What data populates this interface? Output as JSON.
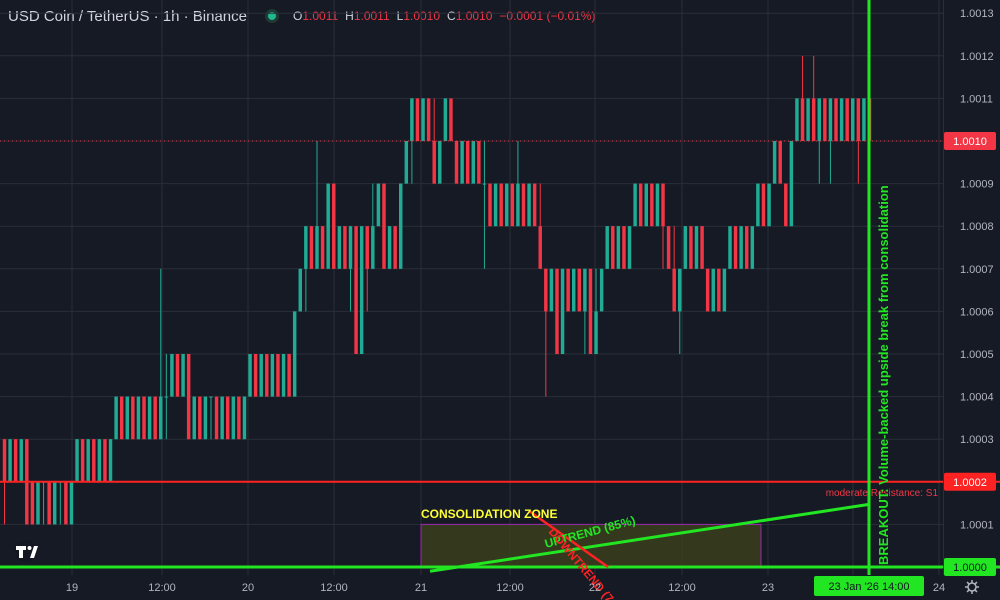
{
  "header": {
    "symbol_title": "USD Coin / TetherUS · 1h · Binance",
    "ohlc": {
      "open_label": "O",
      "open": "1.0011",
      "high_label": "H",
      "high": "1.0011",
      "low_label": "L",
      "low": "1.0010",
      "close_label": "C",
      "close": "1.0010",
      "change": "−0.0001 (−0.01%)"
    }
  },
  "colors": {
    "background": "#161a25",
    "up": "#22ab94",
    "down": "#f23645",
    "breakout": "#22e622",
    "resistance": "#ff2222",
    "zone_fill": "#3a3f1d",
    "zone_border": "#9c27b0",
    "grid": "#2a2e39"
  },
  "logo": {
    "icon": "tradingview-logo-icon",
    "text": "TV"
  },
  "chart_data": {
    "type": "candlestick",
    "y_axis_ticks": [
      "1.0013",
      "1.0012",
      "1.0011",
      "1.0010",
      "1.0009",
      "1.0008",
      "1.0007",
      "1.0006",
      "1.0005",
      "1.0004",
      "1.0003",
      "1.0002",
      "1.0001",
      "1.0000"
    ],
    "ylim": [
      0.99995,
      1.00134
    ],
    "x_axis_ticks": [
      "19",
      "12:00",
      "20",
      "12:00",
      "21",
      "12:00",
      "22",
      "12:00",
      "23",
      "12:00",
      "24"
    ],
    "last_price": "1.0010",
    "price_labels": {
      "resistance": "1.0002",
      "breakout": "1.0000"
    },
    "crosshair_time_label": "23 Jan '26   14:00",
    "annotations": {
      "consolidation_zone": "CONSOLIDATION ZONE",
      "uptrend": "UPTREND (85%)",
      "downtrend": "DOWNTREND (7",
      "resistance": "moderate Resistance: S1",
      "breakout": "BREAKOUT: Volume-backed upside break from consolidation"
    },
    "candles": [
      {
        "o": 1.0003,
        "h": 1.0003,
        "l": 1.0001,
        "c": 1.0002
      },
      {
        "o": 1.0002,
        "h": 1.0003,
        "l": 1.0002,
        "c": 1.0003
      },
      {
        "o": 1.0003,
        "h": 1.0003,
        "l": 1.0002,
        "c": 1.0002
      },
      {
        "o": 1.0002,
        "h": 1.0003,
        "l": 1.0002,
        "c": 1.0003
      },
      {
        "o": 1.0003,
        "h": 1.0003,
        "l": 1.0001,
        "c": 1.0001
      },
      {
        "o": 1.0002,
        "h": 1.0002,
        "l": 1.0001,
        "c": 1.0001
      },
      {
        "o": 1.0001,
        "h": 1.0002,
        "l": 1.0001,
        "c": 1.0002
      },
      {
        "o": 1.0002,
        "h": 1.0002,
        "l": 1.0001,
        "c": 1.0002
      },
      {
        "o": 1.0002,
        "h": 1.0002,
        "l": 1.0001,
        "c": 1.0001
      },
      {
        "o": 1.0001,
        "h": 1.0002,
        "l": 1.0001,
        "c": 1.0002
      },
      {
        "o": 1.0002,
        "h": 1.0002,
        "l": 1.0001,
        "c": 1.0002
      },
      {
        "o": 1.0002,
        "h": 1.0002,
        "l": 1.0001,
        "c": 1.0001
      },
      {
        "o": 1.0001,
        "h": 1.0002,
        "l": 1.0001,
        "c": 1.0002
      },
      {
        "o": 1.0002,
        "h": 1.0003,
        "l": 1.0002,
        "c": 1.0003
      },
      {
        "o": 1.0003,
        "h": 1.0003,
        "l": 1.0002,
        "c": 1.0002
      },
      {
        "o": 1.0002,
        "h": 1.0003,
        "l": 1.0002,
        "c": 1.0003
      },
      {
        "o": 1.0003,
        "h": 1.0003,
        "l": 1.0002,
        "c": 1.0002
      },
      {
        "o": 1.0002,
        "h": 1.0003,
        "l": 1.0002,
        "c": 1.0003
      },
      {
        "o": 1.0003,
        "h": 1.0003,
        "l": 1.0002,
        "c": 1.0002
      },
      {
        "o": 1.0002,
        "h": 1.0003,
        "l": 1.0002,
        "c": 1.0003
      },
      {
        "o": 1.0003,
        "h": 1.0004,
        "l": 1.0003,
        "c": 1.0004
      },
      {
        "o": 1.0004,
        "h": 1.0004,
        "l": 1.0003,
        "c": 1.0003
      },
      {
        "o": 1.0003,
        "h": 1.0004,
        "l": 1.0003,
        "c": 1.0004
      },
      {
        "o": 1.0004,
        "h": 1.0004,
        "l": 1.0003,
        "c": 1.0003
      },
      {
        "o": 1.0003,
        "h": 1.0004,
        "l": 1.0003,
        "c": 1.0004
      },
      {
        "o": 1.0004,
        "h": 1.0004,
        "l": 1.0003,
        "c": 1.0003
      },
      {
        "o": 1.0003,
        "h": 1.0004,
        "l": 1.0003,
        "c": 1.0004
      },
      {
        "o": 1.0004,
        "h": 1.0004,
        "l": 1.0003,
        "c": 1.0003
      },
      {
        "o": 1.0003,
        "h": 1.0007,
        "l": 1.0003,
        "c": 1.0004
      },
      {
        "o": 1.0004,
        "h": 1.0005,
        "l": 1.0003,
        "c": 1.0004
      },
      {
        "o": 1.0004,
        "h": 1.0005,
        "l": 1.0004,
        "c": 1.0005
      },
      {
        "o": 1.0005,
        "h": 1.0005,
        "l": 1.0004,
        "c": 1.0004
      },
      {
        "o": 1.0004,
        "h": 1.0005,
        "l": 1.0004,
        "c": 1.0005
      },
      {
        "o": 1.0005,
        "h": 1.0005,
        "l": 1.0003,
        "c": 1.0003
      },
      {
        "o": 1.0003,
        "h": 1.0004,
        "l": 1.0003,
        "c": 1.0004
      },
      {
        "o": 1.0004,
        "h": 1.0004,
        "l": 1.0003,
        "c": 1.0003
      },
      {
        "o": 1.0003,
        "h": 1.0004,
        "l": 1.0003,
        "c": 1.0004
      },
      {
        "o": 1.0004,
        "h": 1.0004,
        "l": 1.0003,
        "c": 1.0004
      },
      {
        "o": 1.0004,
        "h": 1.0004,
        "l": 1.0003,
        "c": 1.0003
      },
      {
        "o": 1.0003,
        "h": 1.0004,
        "l": 1.0003,
        "c": 1.0004
      },
      {
        "o": 1.0004,
        "h": 1.0004,
        "l": 1.0003,
        "c": 1.0003
      },
      {
        "o": 1.0003,
        "h": 1.0004,
        "l": 1.0003,
        "c": 1.0004
      },
      {
        "o": 1.0004,
        "h": 1.0004,
        "l": 1.0003,
        "c": 1.0003
      },
      {
        "o": 1.0003,
        "h": 1.0004,
        "l": 1.0003,
        "c": 1.0004
      },
      {
        "o": 1.0004,
        "h": 1.0005,
        "l": 1.0004,
        "c": 1.0005
      },
      {
        "o": 1.0005,
        "h": 1.0005,
        "l": 1.0004,
        "c": 1.0004
      },
      {
        "o": 1.0004,
        "h": 1.0005,
        "l": 1.0004,
        "c": 1.0005
      },
      {
        "o": 1.0005,
        "h": 1.0005,
        "l": 1.0004,
        "c": 1.0004
      },
      {
        "o": 1.0004,
        "h": 1.0005,
        "l": 1.0004,
        "c": 1.0005
      },
      {
        "o": 1.0005,
        "h": 1.0005,
        "l": 1.0004,
        "c": 1.0004
      },
      {
        "o": 1.0004,
        "h": 1.0005,
        "l": 1.0004,
        "c": 1.0005
      },
      {
        "o": 1.0005,
        "h": 1.0005,
        "l": 1.0004,
        "c": 1.0004
      },
      {
        "o": 1.0004,
        "h": 1.0006,
        "l": 1.0004,
        "c": 1.0006
      },
      {
        "o": 1.0006,
        "h": 1.0007,
        "l": 1.0006,
        "c": 1.0007
      },
      {
        "o": 1.0007,
        "h": 1.0008,
        "l": 1.0006,
        "c": 1.0008
      },
      {
        "o": 1.0008,
        "h": 1.0008,
        "l": 1.0007,
        "c": 1.0007
      },
      {
        "o": 1.0007,
        "h": 1.001,
        "l": 1.0007,
        "c": 1.0008
      },
      {
        "o": 1.0008,
        "h": 1.0008,
        "l": 1.0007,
        "c": 1.0007
      },
      {
        "o": 1.0007,
        "h": 1.0009,
        "l": 1.0007,
        "c": 1.0009
      },
      {
        "o": 1.0009,
        "h": 1.0009,
        "l": 1.0007,
        "c": 1.0007
      },
      {
        "o": 1.0007,
        "h": 1.0008,
        "l": 1.0007,
        "c": 1.0008
      },
      {
        "o": 1.0008,
        "h": 1.0008,
        "l": 1.0007,
        "c": 1.0007
      },
      {
        "o": 1.0007,
        "h": 1.0008,
        "l": 1.0006,
        "c": 1.0008
      },
      {
        "o": 1.0008,
        "h": 1.0008,
        "l": 1.0005,
        "c": 1.0005
      },
      {
        "o": 1.0005,
        "h": 1.0008,
        "l": 1.0005,
        "c": 1.0008
      },
      {
        "o": 1.0008,
        "h": 1.0008,
        "l": 1.0006,
        "c": 1.0007
      },
      {
        "o": 1.0007,
        "h": 1.0009,
        "l": 1.0007,
        "c": 1.0008
      },
      {
        "o": 1.0008,
        "h": 1.0009,
        "l": 1.0008,
        "c": 1.0009
      },
      {
        "o": 1.0009,
        "h": 1.0009,
        "l": 1.0007,
        "c": 1.0007
      },
      {
        "o": 1.0007,
        "h": 1.0008,
        "l": 1.0007,
        "c": 1.0008
      },
      {
        "o": 1.0008,
        "h": 1.0008,
        "l": 1.0007,
        "c": 1.0007
      },
      {
        "o": 1.0007,
        "h": 1.0009,
        "l": 1.0007,
        "c": 1.0009
      },
      {
        "o": 1.0009,
        "h": 1.001,
        "l": 1.0009,
        "c": 1.001
      },
      {
        "o": 1.001,
        "h": 1.0011,
        "l": 1.0009,
        "c": 1.0011
      },
      {
        "o": 1.0011,
        "h": 1.0011,
        "l": 1.001,
        "c": 1.001
      },
      {
        "o": 1.001,
        "h": 1.0011,
        "l": 1.001,
        "c": 1.0011
      },
      {
        "o": 1.0011,
        "h": 1.0011,
        "l": 1.001,
        "c": 1.001
      },
      {
        "o": 1.001,
        "h": 1.0011,
        "l": 1.0009,
        "c": 1.0009
      },
      {
        "o": 1.0009,
        "h": 1.001,
        "l": 1.0009,
        "c": 1.001
      },
      {
        "o": 1.001,
        "h": 1.0011,
        "l": 1.001,
        "c": 1.0011
      },
      {
        "o": 1.0011,
        "h": 1.0011,
        "l": 1.001,
        "c": 1.001
      },
      {
        "o": 1.001,
        "h": 1.001,
        "l": 1.0009,
        "c": 1.0009
      },
      {
        "o": 1.0009,
        "h": 1.001,
        "l": 1.0009,
        "c": 1.001
      },
      {
        "o": 1.001,
        "h": 1.001,
        "l": 1.0009,
        "c": 1.0009
      },
      {
        "o": 1.0009,
        "h": 1.001,
        "l": 1.0009,
        "c": 1.001
      },
      {
        "o": 1.001,
        "h": 1.001,
        "l": 1.0009,
        "c": 1.0009
      },
      {
        "o": 1.0009,
        "h": 1.001,
        "l": 1.0007,
        "c": 1.0009
      },
      {
        "o": 1.0009,
        "h": 1.0009,
        "l": 1.0008,
        "c": 1.0008
      },
      {
        "o": 1.0008,
        "h": 1.0009,
        "l": 1.0008,
        "c": 1.0009
      },
      {
        "o": 1.0009,
        "h": 1.0009,
        "l": 1.0008,
        "c": 1.0008
      },
      {
        "o": 1.0008,
        "h": 1.0009,
        "l": 1.0008,
        "c": 1.0009
      },
      {
        "o": 1.0009,
        "h": 1.0009,
        "l": 1.0008,
        "c": 1.0008
      },
      {
        "o": 1.0008,
        "h": 1.001,
        "l": 1.0008,
        "c": 1.0009
      },
      {
        "o": 1.0009,
        "h": 1.0009,
        "l": 1.0008,
        "c": 1.0008
      },
      {
        "o": 1.0008,
        "h": 1.0009,
        "l": 1.0008,
        "c": 1.0009
      },
      {
        "o": 1.0009,
        "h": 1.0009,
        "l": 1.0008,
        "c": 1.0008
      },
      {
        "o": 1.0008,
        "h": 1.0009,
        "l": 1.0007,
        "c": 1.0007
      },
      {
        "o": 1.0007,
        "h": 1.0007,
        "l": 1.0004,
        "c": 1.0006
      },
      {
        "o": 1.0006,
        "h": 1.0007,
        "l": 1.0006,
        "c": 1.0007
      },
      {
        "o": 1.0007,
        "h": 1.0007,
        "l": 1.0005,
        "c": 1.0005
      },
      {
        "o": 1.0005,
        "h": 1.0007,
        "l": 1.0005,
        "c": 1.0007
      },
      {
        "o": 1.0007,
        "h": 1.0007,
        "l": 1.0006,
        "c": 1.0006
      },
      {
        "o": 1.0006,
        "h": 1.0007,
        "l": 1.0006,
        "c": 1.0007
      },
      {
        "o": 1.0007,
        "h": 1.0007,
        "l": 1.0006,
        "c": 1.0006
      },
      {
        "o": 1.0006,
        "h": 1.0007,
        "l": 1.0005,
        "c": 1.0007
      },
      {
        "o": 1.0007,
        "h": 1.0007,
        "l": 1.0005,
        "c": 1.0005
      },
      {
        "o": 1.0005,
        "h": 1.0007,
        "l": 1.0005,
        "c": 1.0006
      },
      {
        "o": 1.0006,
        "h": 1.0007,
        "l": 1.0006,
        "c": 1.0007
      },
      {
        "o": 1.0007,
        "h": 1.0008,
        "l": 1.0007,
        "c": 1.0008
      },
      {
        "o": 1.0008,
        "h": 1.0008,
        "l": 1.0007,
        "c": 1.0007
      },
      {
        "o": 1.0007,
        "h": 1.0008,
        "l": 1.0007,
        "c": 1.0008
      },
      {
        "o": 1.0008,
        "h": 1.0008,
        "l": 1.0007,
        "c": 1.0007
      },
      {
        "o": 1.0007,
        "h": 1.0008,
        "l": 1.0007,
        "c": 1.0008
      },
      {
        "o": 1.0008,
        "h": 1.0009,
        "l": 1.0008,
        "c": 1.0009
      },
      {
        "o": 1.0009,
        "h": 1.0009,
        "l": 1.0008,
        "c": 1.0008
      },
      {
        "o": 1.0008,
        "h": 1.0009,
        "l": 1.0008,
        "c": 1.0009
      },
      {
        "o": 1.0009,
        "h": 1.0009,
        "l": 1.0008,
        "c": 1.0008
      },
      {
        "o": 1.0008,
        "h": 1.0009,
        "l": 1.0008,
        "c": 1.0009
      },
      {
        "o": 1.0009,
        "h": 1.0009,
        "l": 1.0007,
        "c": 1.0008
      },
      {
        "o": 1.0008,
        "h": 1.0008,
        "l": 1.0007,
        "c": 1.0007
      },
      {
        "o": 1.0007,
        "h": 1.0008,
        "l": 1.0006,
        "c": 1.0006
      },
      {
        "o": 1.0006,
        "h": 1.0007,
        "l": 1.0005,
        "c": 1.0007
      },
      {
        "o": 1.0007,
        "h": 1.0008,
        "l": 1.0007,
        "c": 1.0008
      },
      {
        "o": 1.0008,
        "h": 1.0008,
        "l": 1.0007,
        "c": 1.0007
      },
      {
        "o": 1.0007,
        "h": 1.0008,
        "l": 1.0007,
        "c": 1.0008
      },
      {
        "o": 1.0008,
        "h": 1.0008,
        "l": 1.0007,
        "c": 1.0007
      },
      {
        "o": 1.0007,
        "h": 1.0007,
        "l": 1.0006,
        "c": 1.0006
      },
      {
        "o": 1.0006,
        "h": 1.0007,
        "l": 1.0006,
        "c": 1.0007
      },
      {
        "o": 1.0007,
        "h": 1.0007,
        "l": 1.0006,
        "c": 1.0006
      },
      {
        "o": 1.0006,
        "h": 1.0007,
        "l": 1.0006,
        "c": 1.0007
      },
      {
        "o": 1.0007,
        "h": 1.0008,
        "l": 1.0007,
        "c": 1.0008
      },
      {
        "o": 1.0008,
        "h": 1.0008,
        "l": 1.0007,
        "c": 1.0007
      },
      {
        "o": 1.0007,
        "h": 1.0008,
        "l": 1.0007,
        "c": 1.0008
      },
      {
        "o": 1.0008,
        "h": 1.0008,
        "l": 1.0007,
        "c": 1.0007
      },
      {
        "o": 1.0007,
        "h": 1.0008,
        "l": 1.0007,
        "c": 1.0008
      },
      {
        "o": 1.0008,
        "h": 1.0009,
        "l": 1.0008,
        "c": 1.0009
      },
      {
        "o": 1.0009,
        "h": 1.0009,
        "l": 1.0008,
        "c": 1.0008
      },
      {
        "o": 1.0008,
        "h": 1.0009,
        "l": 1.0008,
        "c": 1.0009
      },
      {
        "o": 1.0009,
        "h": 1.001,
        "l": 1.0009,
        "c": 1.001
      },
      {
        "o": 1.001,
        "h": 1.001,
        "l": 1.0009,
        "c": 1.0009
      },
      {
        "o": 1.0009,
        "h": 1.0009,
        "l": 1.0008,
        "c": 1.0008
      },
      {
        "o": 1.0008,
        "h": 1.001,
        "l": 1.0008,
        "c": 1.001
      },
      {
        "o": 1.001,
        "h": 1.0011,
        "l": 1.001,
        "c": 1.0011
      },
      {
        "o": 1.0011,
        "h": 1.0012,
        "l": 1.001,
        "c": 1.001
      },
      {
        "o": 1.001,
        "h": 1.0011,
        "l": 1.001,
        "c": 1.0011
      },
      {
        "o": 1.0011,
        "h": 1.0012,
        "l": 1.001,
        "c": 1.001
      },
      {
        "o": 1.001,
        "h": 1.0011,
        "l": 1.0009,
        "c": 1.0011
      },
      {
        "o": 1.0011,
        "h": 1.0011,
        "l": 1.001,
        "c": 1.001
      },
      {
        "o": 1.001,
        "h": 1.0011,
        "l": 1.0009,
        "c": 1.0011
      },
      {
        "o": 1.0011,
        "h": 1.0011,
        "l": 1.001,
        "c": 1.001
      },
      {
        "o": 1.001,
        "h": 1.0011,
        "l": 1.001,
        "c": 1.0011
      },
      {
        "o": 1.0011,
        "h": 1.0011,
        "l": 1.001,
        "c": 1.001
      },
      {
        "o": 1.001,
        "h": 1.0011,
        "l": 1.001,
        "c": 1.0011
      },
      {
        "o": 1.0011,
        "h": 1.0011,
        "l": 1.0009,
        "c": 1.001
      },
      {
        "o": 1.001,
        "h": 1.0011,
        "l": 1.001,
        "c": 1.0011
      },
      {
        "o": 1.0011,
        "h": 1.0011,
        "l": 1.001,
        "c": 1.001
      }
    ]
  }
}
